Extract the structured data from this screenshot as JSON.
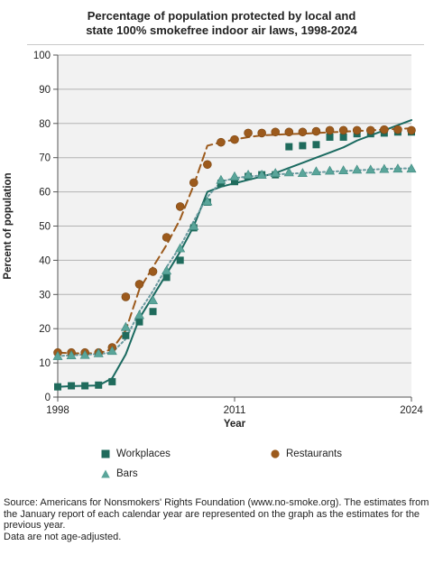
{
  "chart_data": {
    "type": "line",
    "title_lines": [
      "Percentage of population protected by local and",
      "state 100% smokefree indoor air laws, 1998-2024"
    ],
    "xlabel": "Year",
    "ylabel": "Percent of population",
    "x_ticks": [
      "1998",
      "2011",
      "2024"
    ],
    "xlim": [
      1998,
      2024
    ],
    "ylim": [
      0,
      100
    ],
    "y_ticks": [
      0,
      10,
      20,
      30,
      40,
      50,
      60,
      70,
      80,
      90,
      100
    ],
    "grid": true,
    "legend_position": "bottom",
    "x": [
      1998,
      1999,
      2000,
      2001,
      2002,
      2003,
      2004,
      2005,
      2006,
      2007,
      2008,
      2009,
      2010,
      2011,
      2012,
      2013,
      2014,
      2015,
      2016,
      2017,
      2018,
      2019,
      2020,
      2021,
      2022,
      2023,
      2024
    ],
    "series": [
      {
        "name": "Workplaces",
        "marker": "square",
        "color": "#1f6b5c",
        "values": [
          3,
          3.3,
          3.3,
          3.5,
          4.5,
          18,
          22,
          25,
          35,
          40,
          49.5,
          57,
          62.5,
          63,
          64.5,
          65,
          65,
          73.2,
          73.5,
          73.8,
          76,
          76,
          77,
          77,
          77.2,
          77.5,
          77.5
        ],
        "trend_style": "solid",
        "trend_color": "#1a6a60",
        "trend": [
          3,
          3.2,
          3.3,
          3.4,
          5.5,
          12.5,
          23,
          29.5,
          36,
          42.5,
          50,
          60,
          61.5,
          62.5,
          63.5,
          64.5,
          65.5,
          67,
          68.5,
          70,
          71.5,
          73,
          75,
          76.5,
          78,
          79.5,
          81
        ]
      },
      {
        "name": "Restaurants",
        "marker": "circle",
        "color": "#9c5a1c",
        "values": [
          13,
          13,
          13,
          13,
          14.5,
          29.3,
          33,
          36.7,
          46.7,
          55.7,
          62.7,
          68,
          74.5,
          75.3,
          77.2,
          77.2,
          77.5,
          77.5,
          77.5,
          77.7,
          78,
          78,
          78,
          78,
          78.2,
          78.2,
          78
        ],
        "trend_style": "dashed",
        "trend_color": "#9c5a1c",
        "trend": [
          13,
          12.8,
          12.8,
          12.8,
          14,
          19.5,
          31.5,
          38,
          44.5,
          52,
          62,
          73.5,
          74.5,
          75.3,
          76,
          76.5,
          76.7,
          76.9,
          77,
          77.2,
          77.4,
          77.6,
          77.8,
          78,
          78.2,
          78.4,
          78.6
        ]
      },
      {
        "name": "Bars",
        "marker": "triangle",
        "color": "#5aa59a",
        "values": [
          12,
          12.2,
          12.3,
          12.8,
          13.5,
          20.5,
          24,
          28.3,
          37,
          43.5,
          50,
          57.2,
          63.5,
          64.5,
          65,
          65,
          65.5,
          65.7,
          65.5,
          66,
          66.2,
          66.3,
          66.5,
          66.5,
          66.7,
          66.8,
          66.8
        ],
        "trend_style": "dotted",
        "trend_color": "#6a9aa0",
        "trend": [
          12,
          12.2,
          12.4,
          12.6,
          13,
          17,
          25,
          31,
          38,
          44,
          51.5,
          58.5,
          63,
          64,
          64.5,
          64.8,
          65.1,
          65.3,
          65.5,
          65.7,
          65.9,
          66.1,
          66.3,
          66.5,
          66.7,
          66.8,
          66.9
        ]
      }
    ]
  },
  "source_lines": [
    "Source: Americans for Nonsmokers' Rights Foundation (www.no-smoke.org). The estimates from the January report of each calendar year are represented on the graph as the estimates for the previous year.",
    "Data are not age-adjusted."
  ]
}
